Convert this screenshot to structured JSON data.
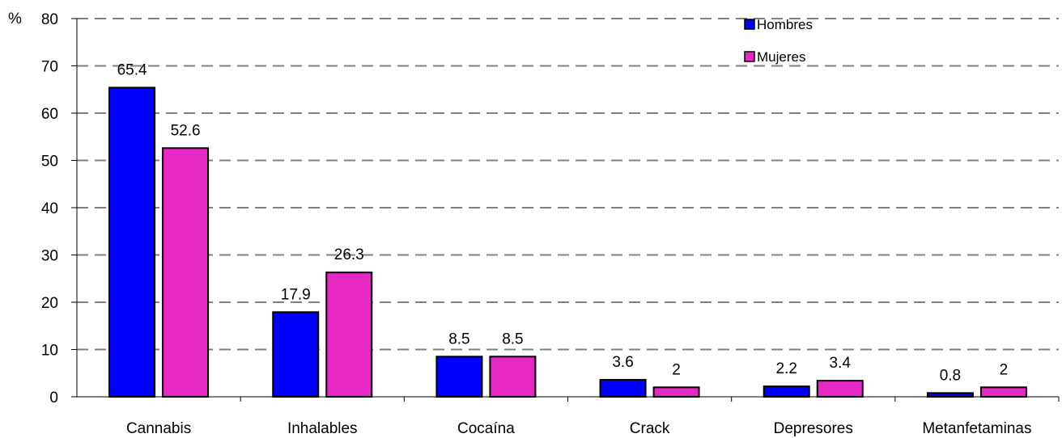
{
  "chart_data": {
    "type": "bar",
    "title": "",
    "xlabel": "",
    "ylabel": "%",
    "ylim": [
      0,
      80
    ],
    "yticks": [
      0,
      10,
      20,
      30,
      40,
      50,
      60,
      70,
      80
    ],
    "grid": true,
    "legend_position": "top-right",
    "categories": [
      "Cannabis",
      "Inhalables",
      "Cocaína",
      "Crack",
      "Depresores",
      "Metanfetaminas"
    ],
    "series": [
      {
        "name": "Hombres",
        "color": "#0000FF",
        "values": [
          65.4,
          17.9,
          8.5,
          3.6,
          2.2,
          0.8
        ],
        "labels": [
          "65.4",
          "17.9",
          "8.5",
          "3.6",
          "2.2",
          "0.8"
        ]
      },
      {
        "name": "Mujeres",
        "color": "#E629C4",
        "values": [
          52.6,
          26.3,
          8.5,
          2,
          3.4,
          2
        ],
        "labels": [
          "52.6",
          "26.3",
          "8.5",
          "2",
          "3.4",
          "2"
        ]
      }
    ]
  }
}
